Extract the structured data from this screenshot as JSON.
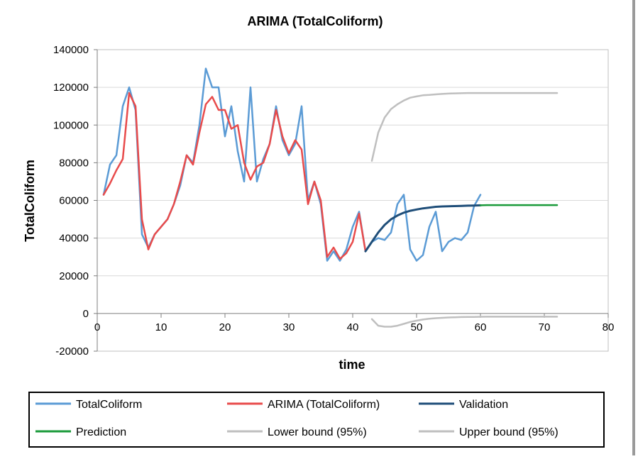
{
  "chart_data": {
    "type": "line",
    "title": "ARIMA (TotalColiform)",
    "xlabel": "time",
    "ylabel": "TotalColiform",
    "xlim": [
      0,
      80
    ],
    "ylim": [
      -20000,
      140000
    ],
    "x_ticks": [
      0,
      10,
      20,
      30,
      40,
      50,
      60,
      70,
      80
    ],
    "y_ticks": [
      -20000,
      0,
      20000,
      40000,
      60000,
      80000,
      100000,
      120000,
      140000
    ],
    "x_tick_labels": [
      "0",
      "10",
      "20",
      "30",
      "40",
      "50",
      "60",
      "70",
      "80"
    ],
    "y_tick_labels": [
      "-20000",
      "0",
      "20000",
      "40000",
      "60000",
      "80000",
      "100000",
      "120000",
      "140000"
    ],
    "grid": "horizontal",
    "legend_position": "bottom",
    "series": [
      {
        "name": "TotalColiform",
        "color": "#5b9bd5",
        "x": [
          1,
          2,
          3,
          4,
          5,
          6,
          7,
          8,
          9,
          10,
          11,
          12,
          13,
          14,
          15,
          16,
          17,
          18,
          19,
          20,
          21,
          22,
          23,
          24,
          25,
          26,
          27,
          28,
          29,
          30,
          31,
          32,
          33,
          34,
          35,
          36,
          37,
          38,
          39,
          40,
          41,
          42,
          43,
          44,
          45,
          46,
          47,
          48,
          49,
          50,
          51,
          52,
          53,
          54,
          55,
          56,
          57,
          58,
          59,
          60
        ],
        "y": [
          63000,
          79000,
          84000,
          110000,
          120000,
          108000,
          42000,
          35000,
          42000,
          46000,
          50000,
          58000,
          68000,
          84000,
          80000,
          100000,
          130000,
          120000,
          120000,
          94000,
          110000,
          86000,
          70000,
          120000,
          70000,
          82000,
          90000,
          110000,
          92000,
          84000,
          90000,
          110000,
          60000,
          70000,
          58000,
          28000,
          33000,
          28000,
          34000,
          46000,
          54000,
          33000,
          38000,
          40000,
          39000,
          43000,
          58000,
          63000,
          34000,
          28000,
          31000,
          46000,
          54000,
          33000,
          38000,
          40000,
          39000,
          43000,
          57000,
          63000
        ]
      },
      {
        "name": "ARIMA (TotalColiform)",
        "color": "#e84b4b",
        "x": [
          1,
          2,
          3,
          4,
          5,
          6,
          7,
          8,
          9,
          10,
          11,
          12,
          13,
          14,
          15,
          16,
          17,
          18,
          19,
          20,
          21,
          22,
          23,
          24,
          25,
          26,
          27,
          28,
          29,
          30,
          31,
          32,
          33,
          34,
          35,
          36,
          37,
          38,
          39,
          40,
          41,
          42
        ],
        "y": [
          63000,
          69000,
          76000,
          82000,
          117000,
          110000,
          50000,
          34000,
          42000,
          46000,
          50000,
          58000,
          70000,
          84000,
          79000,
          96000,
          111000,
          115000,
          108000,
          108000,
          98000,
          100000,
          80000,
          71000,
          78000,
          80000,
          90000,
          108000,
          94000,
          85000,
          92000,
          87000,
          58000,
          70000,
          60000,
          30000,
          35000,
          29000,
          32000,
          38000,
          53000,
          33000
        ]
      },
      {
        "name": "Validation",
        "color": "#1f4e79",
        "x": [
          42,
          43,
          44,
          45,
          46,
          47,
          48,
          49,
          50,
          51,
          52,
          53,
          54,
          55,
          56,
          57,
          58,
          59,
          60
        ],
        "y": [
          33000,
          38000,
          43000,
          47000,
          50000,
          52000,
          53500,
          54500,
          55200,
          55800,
          56200,
          56600,
          56800,
          56900,
          57000,
          57100,
          57200,
          57300,
          57400
        ]
      },
      {
        "name": "Prediction",
        "color": "#1a9a3a",
        "x": [
          60,
          61,
          62,
          63,
          64,
          65,
          66,
          67,
          68,
          69,
          70,
          71,
          72
        ],
        "y": [
          57400,
          57500,
          57500,
          57500,
          57500,
          57500,
          57500,
          57500,
          57500,
          57500,
          57500,
          57500,
          57500
        ]
      },
      {
        "name": "Lower bound (95%)",
        "color": "#bfbfbf",
        "x": [
          43,
          44,
          45,
          46,
          47,
          48,
          49,
          50,
          51,
          52,
          53,
          54,
          55,
          56,
          57,
          58,
          59,
          60,
          61,
          62,
          63,
          64,
          65,
          66,
          67,
          68,
          69,
          70,
          71,
          72
        ],
        "y": [
          -3000,
          -6500,
          -7000,
          -7000,
          -6500,
          -5500,
          -4500,
          -3800,
          -3200,
          -2800,
          -2500,
          -2300,
          -2100,
          -2000,
          -1900,
          -1850,
          -1800,
          -1750,
          -1700,
          -1700,
          -1700,
          -1700,
          -1700,
          -1700,
          -1700,
          -1700,
          -1700,
          -1700,
          -1700,
          -1700
        ]
      },
      {
        "name": "Upper bound (95%)",
        "color": "#bfbfbf",
        "x": [
          43,
          44,
          45,
          46,
          47,
          48,
          49,
          50,
          51,
          52,
          53,
          54,
          55,
          56,
          57,
          58,
          59,
          60,
          61,
          62,
          63,
          64,
          65,
          66,
          67,
          68,
          69,
          70,
          71,
          72
        ],
        "y": [
          81000,
          96000,
          104000,
          108500,
          111000,
          113000,
          114500,
          115200,
          115800,
          116000,
          116300,
          116500,
          116700,
          116800,
          116900,
          117000,
          117000,
          117000,
          117000,
          117000,
          117000,
          117000,
          117000,
          117000,
          117000,
          117000,
          117000,
          117000,
          117000,
          117000
        ]
      }
    ]
  }
}
